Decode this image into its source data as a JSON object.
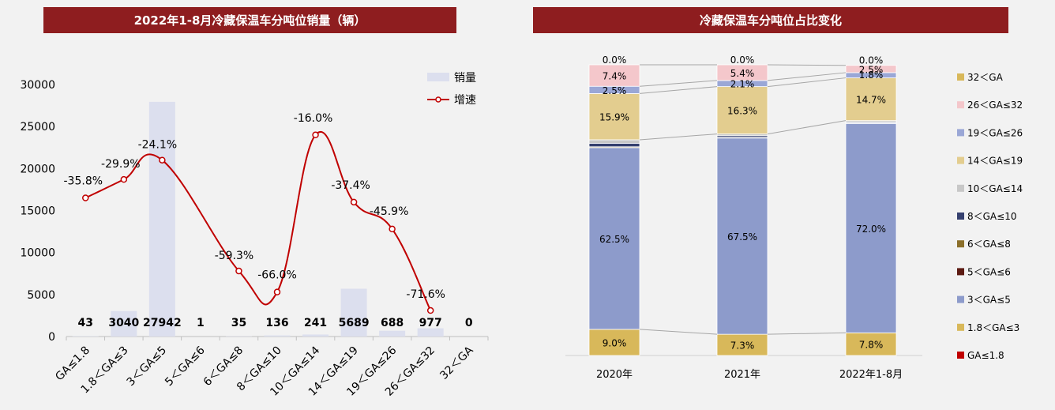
{
  "left_title": "2022年1-8月冷藏保温车分吨位销量（辆）",
  "right_title": "冷藏保温车分吨位占比变化",
  "colors": {
    "banner": "#8e1d1f",
    "bar_sales": "#dcdfee",
    "line_growth": "#c00000",
    "seg_le1_8": "#c00000",
    "seg_1_8_3": "#d8b85a",
    "seg_3_5": "#8d9bcb",
    "seg_5_6": "#5c1a12",
    "seg_6_8": "#8b6f2a",
    "seg_8_10": "#35406f",
    "seg_10_14": "#c8c8c8",
    "seg_14_19": "#e3cd8f",
    "seg_19_26": "#9aa7d6",
    "seg_26_32": "#f4c7cb",
    "seg_32": "#d8b85a"
  },
  "chart_data": [
    {
      "type": "bar",
      "title": "2022年1-8月冷藏保温车分吨位销量（辆）",
      "categories": [
        "GA≤1.8",
        "1.8＜GA≤3",
        "3＜GA≤5",
        "5＜GA≤6",
        "6＜GA≤8",
        "8＜GA≤10",
        "10＜GA≤14",
        "14＜GA≤19",
        "19＜GA≤26",
        "26＜GA≤32",
        "32＜GA"
      ],
      "ylim": [
        0,
        30000
      ],
      "yticks": [
        "0",
        "5000",
        "10000",
        "15000",
        "20000",
        "25000",
        "30000"
      ],
      "legend_position": "top-right",
      "series": [
        {
          "name": "销量",
          "type": "bar",
          "values": [
            43,
            3040,
            27942,
            1,
            35,
            136,
            241,
            5689,
            688,
            977,
            0
          ],
          "labels": [
            "43",
            "3040",
            "27942",
            "1",
            "35",
            "136",
            "241",
            "5689",
            "688",
            "977",
            "0"
          ]
        },
        {
          "name": "增速",
          "type": "line",
          "values": [
            16500,
            18700,
            21000,
            null,
            7800,
            5300,
            24000,
            16000,
            12800,
            3100,
            null
          ],
          "labels": [
            "-35.8%",
            "-29.9%",
            "-24.1%",
            "",
            "-59.3%",
            "-66.0%",
            "-16.0%",
            "-37.4%",
            "-45.9%",
            "-71.6%",
            ""
          ]
        }
      ]
    },
    {
      "type": "bar",
      "stacked": true,
      "title": "冷藏保温车分吨位占比变化",
      "categories": [
        "2020年",
        "2021年",
        "2022年1-8月"
      ],
      "ylim": [
        0,
        100
      ],
      "legend_position": "right",
      "series": [
        {
          "name": "GA≤1.8",
          "values": [
            0,
            0,
            0
          ],
          "labels": [
            "",
            "",
            ""
          ]
        },
        {
          "name": "1.8＜GA≤3",
          "values": [
            9.0,
            7.3,
            7.8
          ],
          "labels": [
            "9.0%",
            "7.3%",
            "7.8%"
          ]
        },
        {
          "name": "3＜GA≤5",
          "values": [
            62.5,
            67.5,
            72.0
          ],
          "labels": [
            "62.5%",
            "67.5%",
            "72.0%"
          ]
        },
        {
          "name": "5＜GA≤6",
          "values": [
            0,
            0,
            0
          ],
          "labels": [
            "",
            "",
            ""
          ]
        },
        {
          "name": "6＜GA≤8",
          "values": [
            0.3,
            0.2,
            0.2
          ],
          "labels": [
            "",
            "",
            ""
          ]
        },
        {
          "name": "8＜GA≤10",
          "values": [
            1.2,
            0.6,
            0.3
          ],
          "labels": [
            "",
            "",
            ""
          ]
        },
        {
          "name": "10＜GA≤14",
          "values": [
            1.2,
            0.6,
            0.5
          ],
          "labels": [
            "",
            "",
            ""
          ]
        },
        {
          "name": "14＜GA≤19",
          "values": [
            15.9,
            16.3,
            14.7
          ],
          "labels": [
            "15.9%",
            "16.3%",
            "14.7%"
          ]
        },
        {
          "name": "19＜GA≤26",
          "values": [
            2.5,
            2.1,
            1.8
          ],
          "labels": [
            "2.5%",
            "2.1%",
            "1.8%"
          ]
        },
        {
          "name": "26＜GA≤32",
          "values": [
            7.4,
            5.4,
            2.5
          ],
          "labels": [
            "7.4%",
            "5.4%",
            "2.5%"
          ]
        },
        {
          "name": "32＜GA",
          "values": [
            0,
            0,
            0
          ],
          "labels": [
            "0.0%",
            "0.0%",
            "0.0%"
          ]
        }
      ],
      "legend_order": [
        "32＜GA",
        "26＜GA≤32",
        "19＜GA≤26",
        "14＜GA≤19",
        "10＜GA≤14",
        "8＜GA≤10",
        "6＜GA≤8",
        "5＜GA≤6",
        "3＜GA≤5",
        "1.8＜GA≤3",
        "GA≤1.8"
      ]
    }
  ]
}
